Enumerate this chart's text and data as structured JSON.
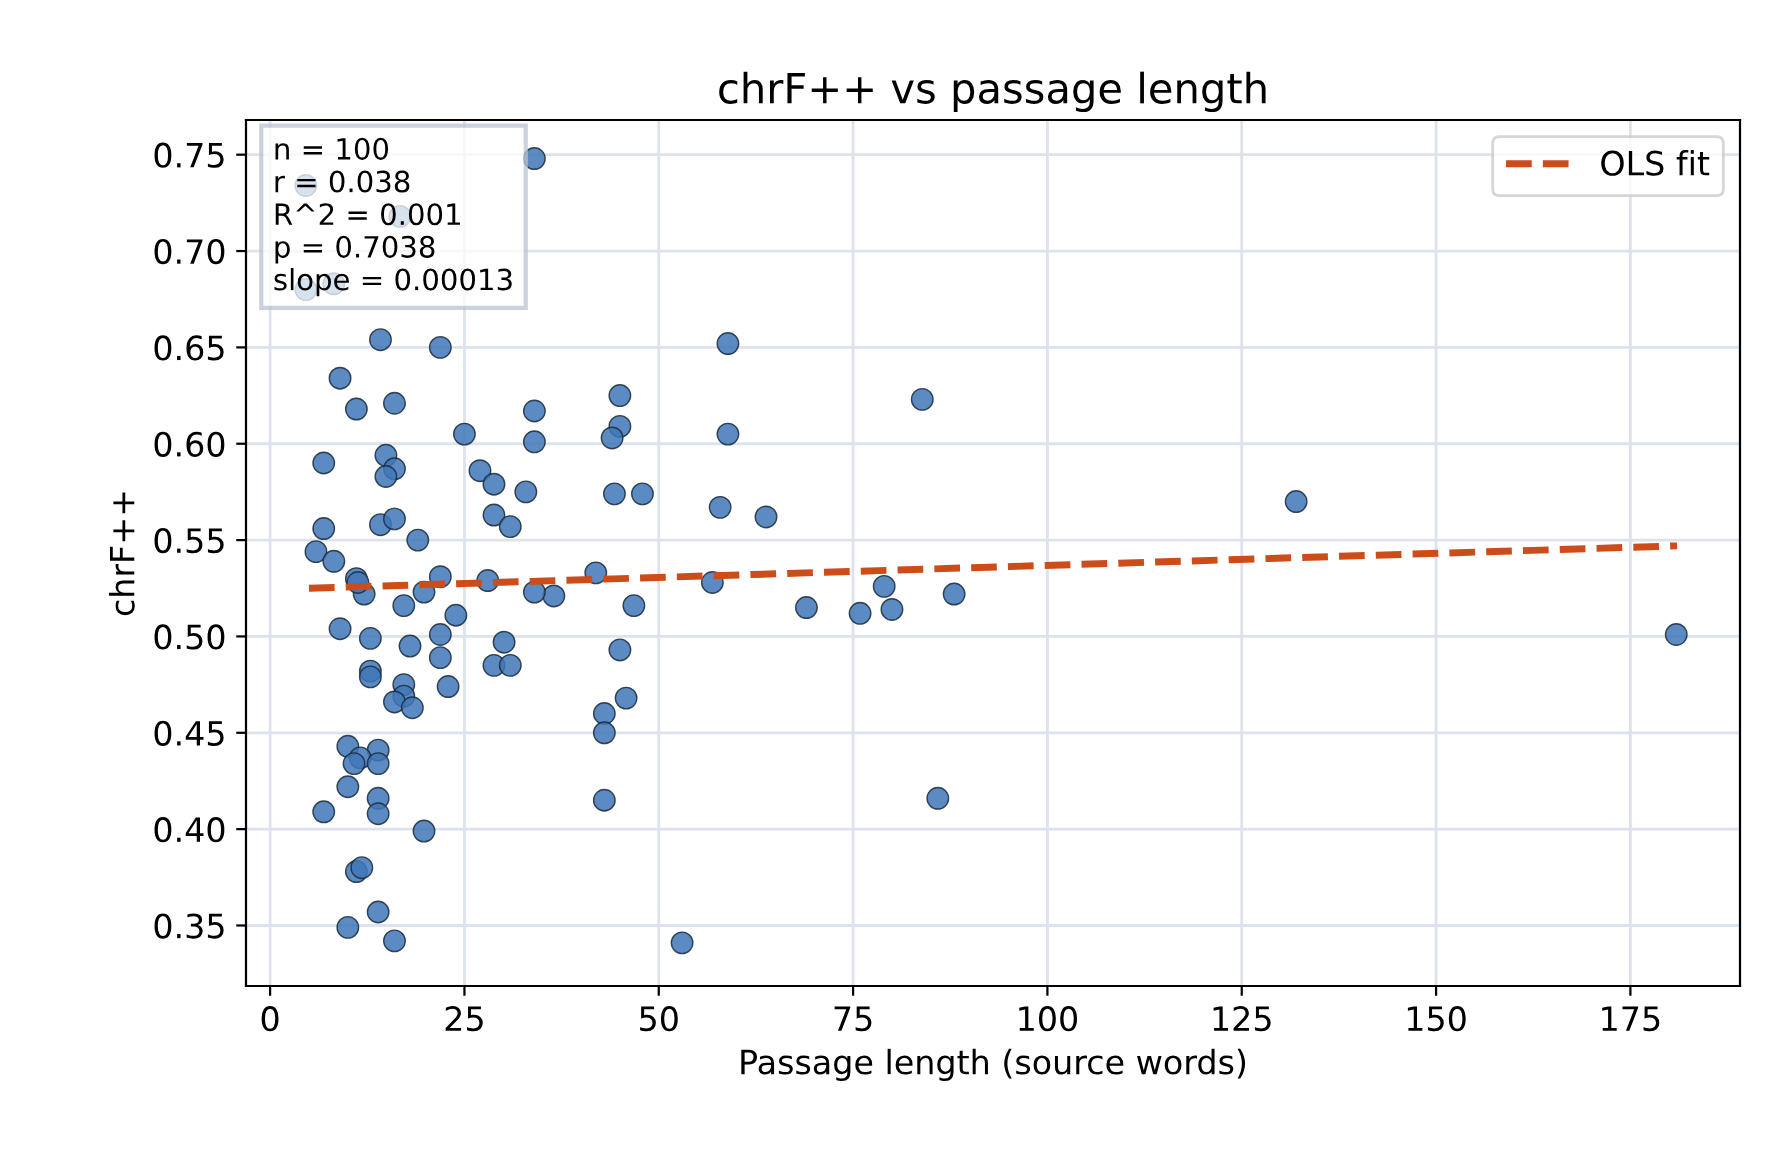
{
  "chart_data": {
    "type": "scatter",
    "title": "chrF++ vs passage length",
    "xlabel": "Passage length (source words)",
    "ylabel": "chrF++",
    "xlim": [
      -3.1,
      189.1
    ],
    "ylim": [
      0.3186,
      0.768
    ],
    "xticks": [
      0,
      25,
      50,
      75,
      100,
      125,
      150,
      175
    ],
    "yticks": [
      0.35,
      {
        "value": 0.4,
        "label": "0.40"
      },
      0.45,
      {
        "value": 0.5,
        "label": "0.50"
      },
      0.55,
      {
        "value": 0.6,
        "label": "0.60"
      },
      0.65,
      {
        "value": 0.7,
        "label": "0.70"
      },
      0.75
    ],
    "grid": true,
    "legend": "top right",
    "marker": "circle",
    "annotations": [
      "n = 100\nr = 0.038\nR^2 = 0.001\np = 0.7038\nslope = 0.00013"
    ],
    "series": [
      {
        "color": "#3f77b8",
        "x": [
          34.0,
          4.6,
          16.7,
          8.2,
          4.6,
          14.2,
          21.9,
          9.0,
          11.1,
          16.0,
          6.9,
          25.0,
          14.9,
          16.0,
          14.9,
          27.0,
          28.8,
          32.9,
          34.0,
          34.0,
          45.0,
          45.0,
          44.0,
          44.3,
          47.9,
          28.8,
          30.9,
          14.2,
          16.0,
          19.0,
          6.9,
          5.9,
          58.9,
          58.9,
          57.9,
          63.8,
          83.9,
          41.9,
          56.9,
          36.5,
          46.8,
          69.0,
          75.9,
          79.0,
          80.0,
          88.0,
          45.0,
          45.8,
          43.0,
          43.0,
          43.0,
          85.9,
          53.0,
          132.0,
          180.9,
          8.2,
          11.1,
          12.1,
          11.3,
          21.9,
          19.8,
          17.2,
          23.9,
          28.0,
          34.0,
          9.0,
          12.9,
          18.0,
          21.9,
          21.9,
          22.9,
          30.1,
          28.8,
          30.9,
          12.9,
          12.9,
          17.2,
          17.2,
          16.0,
          18.3,
          10.0,
          13.9,
          11.6,
          10.8,
          13.9,
          10.0,
          13.9,
          13.9,
          6.9,
          19.8,
          11.1,
          11.8,
          13.9,
          10.0,
          16.0
        ],
        "values": [
          0.748,
          0.734,
          0.718,
          0.683,
          0.68,
          0.654,
          0.65,
          0.634,
          0.618,
          0.621,
          0.59,
          0.605,
          0.594,
          0.587,
          0.583,
          0.586,
          0.579,
          0.575,
          0.617,
          0.601,
          0.625,
          0.609,
          0.603,
          0.574,
          0.574,
          0.563,
          0.557,
          0.558,
          0.561,
          0.55,
          0.556,
          0.544,
          0.652,
          0.605,
          0.567,
          0.562,
          0.623,
          0.533,
          0.528,
          0.521,
          0.516,
          0.515,
          0.512,
          0.526,
          0.514,
          0.522,
          0.493,
          0.468,
          0.46,
          0.45,
          0.415,
          0.416,
          0.341,
          0.57,
          0.501,
          0.539,
          0.53,
          0.522,
          0.528,
          0.531,
          0.523,
          0.516,
          0.511,
          0.529,
          0.523,
          0.504,
          0.499,
          0.495,
          0.501,
          0.489,
          0.474,
          0.497,
          0.485,
          0.485,
          0.482,
          0.479,
          0.475,
          0.469,
          0.466,
          0.463,
          0.443,
          0.441,
          0.437,
          0.434,
          0.434,
          0.422,
          0.416,
          0.408,
          0.409,
          0.399,
          0.378,
          0.38,
          0.357,
          0.349,
          0.342
        ]
      },
      {
        "type": "line",
        "name": "OLS fit",
        "color": "#cc4c1a",
        "line_style": "dashed",
        "marker": "none",
        "x": [
          5,
          181
        ],
        "values": [
          0.525,
          0.547
        ]
      }
    ]
  }
}
